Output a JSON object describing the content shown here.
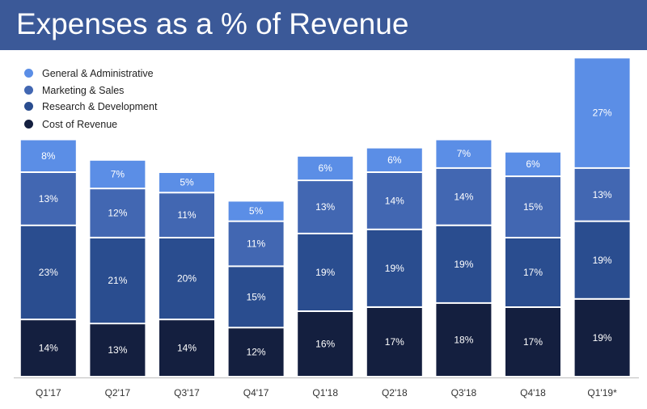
{
  "header": {
    "title": "Expenses as a % of Revenue"
  },
  "colors": {
    "header_bg": "#3b5998",
    "general_administrative": "#5b8ee6",
    "marketing_sales": "#4267b2",
    "research_development": "#2a4d8f",
    "cost_of_revenue": "#141f3f"
  },
  "chart_data": {
    "type": "bar",
    "stacked": true,
    "title": "Expenses as a % of Revenue",
    "xlabel": "",
    "ylabel": "",
    "categories": [
      "Q1'17",
      "Q2'17",
      "Q3'17",
      "Q4'17",
      "Q1'18",
      "Q2'18",
      "Q3'18",
      "Q4'18",
      "Q1'19*"
    ],
    "series": [
      {
        "name": "Cost of Revenue",
        "color": "#141f3f",
        "values": [
          14,
          13,
          14,
          12,
          16,
          17,
          18,
          17,
          19
        ]
      },
      {
        "name": "Research & Development",
        "color": "#2a4d8f",
        "values": [
          23,
          21,
          20,
          15,
          19,
          19,
          19,
          17,
          19
        ]
      },
      {
        "name": "Marketing & Sales",
        "color": "#4267b2",
        "values": [
          13,
          12,
          11,
          11,
          13,
          14,
          14,
          15,
          13
        ]
      },
      {
        "name": "General & Administrative",
        "color": "#5b8ee6",
        "values": [
          8,
          7,
          5,
          5,
          6,
          6,
          7,
          6,
          27
        ]
      }
    ],
    "value_suffix": "%",
    "legend": [
      "General & Administrative",
      "Marketing & Sales",
      "Research & Development",
      "Cost of Revenue"
    ],
    "legend_position": "top-left",
    "grid": false
  }
}
